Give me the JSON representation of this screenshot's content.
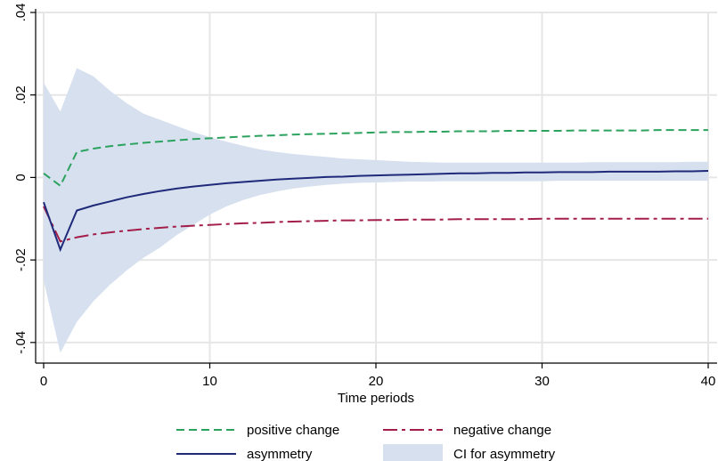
{
  "chart_data": {
    "type": "line",
    "title": "",
    "xlabel": "Time periods",
    "ylabel": "",
    "xlim": [
      0,
      40
    ],
    "ylim": [
      -0.045,
      0.04
    ],
    "x_ticks": [
      0,
      10,
      20,
      30,
      40
    ],
    "x_tick_labels": [
      "0",
      "10",
      "20",
      "30",
      "40"
    ],
    "y_ticks": [
      -0.04,
      -0.02,
      0,
      0.02,
      0.04
    ],
    "y_tick_labels": [
      "-.04",
      "-.02",
      "0",
      ".02",
      ".04"
    ],
    "grid": "on",
    "legend_position": "bottom",
    "x": [
      0,
      1,
      2,
      3,
      4,
      5,
      6,
      7,
      8,
      9,
      10,
      11,
      12,
      13,
      14,
      15,
      16,
      17,
      18,
      19,
      20,
      21,
      22,
      23,
      24,
      25,
      26,
      27,
      28,
      29,
      30,
      31,
      32,
      33,
      34,
      35,
      36,
      37,
      38,
      39,
      40
    ],
    "series": [
      {
        "name": "positive change",
        "style": "dashed",
        "color": "#2ca25f",
        "values": [
          0.001,
          -0.002,
          0.0062,
          0.007,
          0.0076,
          0.008,
          0.0084,
          0.0087,
          0.009,
          0.0093,
          0.0095,
          0.0097,
          0.0099,
          0.0101,
          0.0102,
          0.0104,
          0.0105,
          0.0106,
          0.0107,
          0.0108,
          0.0109,
          0.011,
          0.011,
          0.0111,
          0.0111,
          0.0112,
          0.0112,
          0.0112,
          0.0113,
          0.0113,
          0.0113,
          0.0113,
          0.0114,
          0.0114,
          0.0114,
          0.0114,
          0.0114,
          0.0115,
          0.0115,
          0.0115,
          0.0115
        ]
      },
      {
        "name": "negative change",
        "style": "longdash-dot",
        "color": "#a31f4a",
        "values": [
          -0.007,
          -0.0155,
          -0.0145,
          -0.0138,
          -0.0133,
          -0.0129,
          -0.0125,
          -0.0122,
          -0.0119,
          -0.0117,
          -0.0115,
          -0.0113,
          -0.0111,
          -0.011,
          -0.0108,
          -0.0107,
          -0.0106,
          -0.0105,
          -0.0104,
          -0.0104,
          -0.0103,
          -0.0103,
          -0.0102,
          -0.0102,
          -0.0102,
          -0.0101,
          -0.0101,
          -0.0101,
          -0.0101,
          -0.0101,
          -0.01,
          -0.01,
          -0.01,
          -0.01,
          -0.01,
          -0.01,
          -0.01,
          -0.01,
          -0.01,
          -0.01,
          -0.01
        ]
      },
      {
        "name": "asymmetry",
        "style": "solid",
        "color": "#1f2a7a",
        "values": [
          -0.006,
          -0.0175,
          -0.008,
          -0.0068,
          -0.0058,
          -0.0048,
          -0.004,
          -0.0033,
          -0.0027,
          -0.0022,
          -0.0018,
          -0.0014,
          -0.0011,
          -0.0008,
          -0.0005,
          -0.0003,
          -0.0001,
          0.0001,
          0.0002,
          0.0004,
          0.0005,
          0.0006,
          0.0007,
          0.0008,
          0.0009,
          0.001,
          0.001,
          0.0011,
          0.0011,
          0.0012,
          0.0012,
          0.0013,
          0.0013,
          0.0013,
          0.0014,
          0.0014,
          0.0014,
          0.0014,
          0.0015,
          0.0015,
          0.0016
        ]
      }
    ],
    "ci": {
      "name": "CI for asymmetry",
      "color": "#d7e0ee",
      "upper": [
        0.023,
        0.016,
        0.0265,
        0.0245,
        0.021,
        0.018,
        0.0155,
        0.014,
        0.0125,
        0.011,
        0.0098,
        0.0087,
        0.0077,
        0.0068,
        0.0062,
        0.0057,
        0.0053,
        0.005,
        0.0046,
        0.0044,
        0.0042,
        0.004,
        0.0038,
        0.0037,
        0.0036,
        0.0036,
        0.0036,
        0.0036,
        0.0036,
        0.0036,
        0.0036,
        0.0036,
        0.0036,
        0.0037,
        0.0037,
        0.0037,
        0.0037,
        0.0037,
        0.0037,
        0.0038,
        0.0038
      ],
      "lower": [
        -0.025,
        -0.0425,
        -0.035,
        -0.03,
        -0.026,
        -0.0225,
        -0.0195,
        -0.017,
        -0.014,
        -0.0115,
        -0.009,
        -0.007,
        -0.0055,
        -0.0043,
        -0.0034,
        -0.0027,
        -0.0022,
        -0.0018,
        -0.0015,
        -0.0013,
        -0.0012,
        -0.0011,
        -0.001,
        -0.001,
        -0.0009,
        -0.0009,
        -0.0009,
        -0.0009,
        -0.0009,
        -0.0009,
        -0.0009,
        -0.0008,
        -0.0008,
        -0.0008,
        -0.0008,
        -0.0008,
        -0.0008,
        -0.0008,
        -0.0008,
        -0.0008,
        -0.0008
      ]
    }
  }
}
